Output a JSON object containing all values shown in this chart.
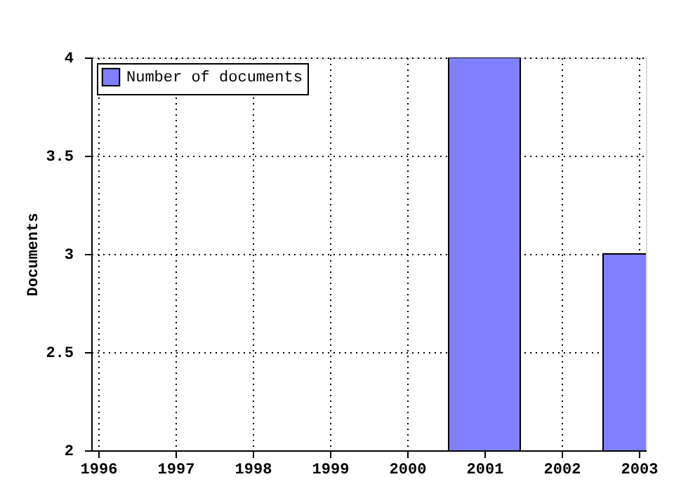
{
  "chart_data": {
    "type": "bar",
    "ylabel": "Documents",
    "x": [
      2001,
      2003
    ],
    "series": [
      {
        "name": "Number of documents",
        "color": "#8080ff",
        "values": [
          4,
          3
        ]
      }
    ],
    "xlim": [
      1996,
      2003
    ],
    "xticks": [
      1996,
      1997,
      1998,
      1999,
      2000,
      2001,
      2002,
      2003
    ],
    "ylim": [
      2,
      4
    ],
    "yticks": [
      2,
      2.5,
      3,
      3.5,
      4
    ],
    "grid": true,
    "legend": "top left"
  }
}
